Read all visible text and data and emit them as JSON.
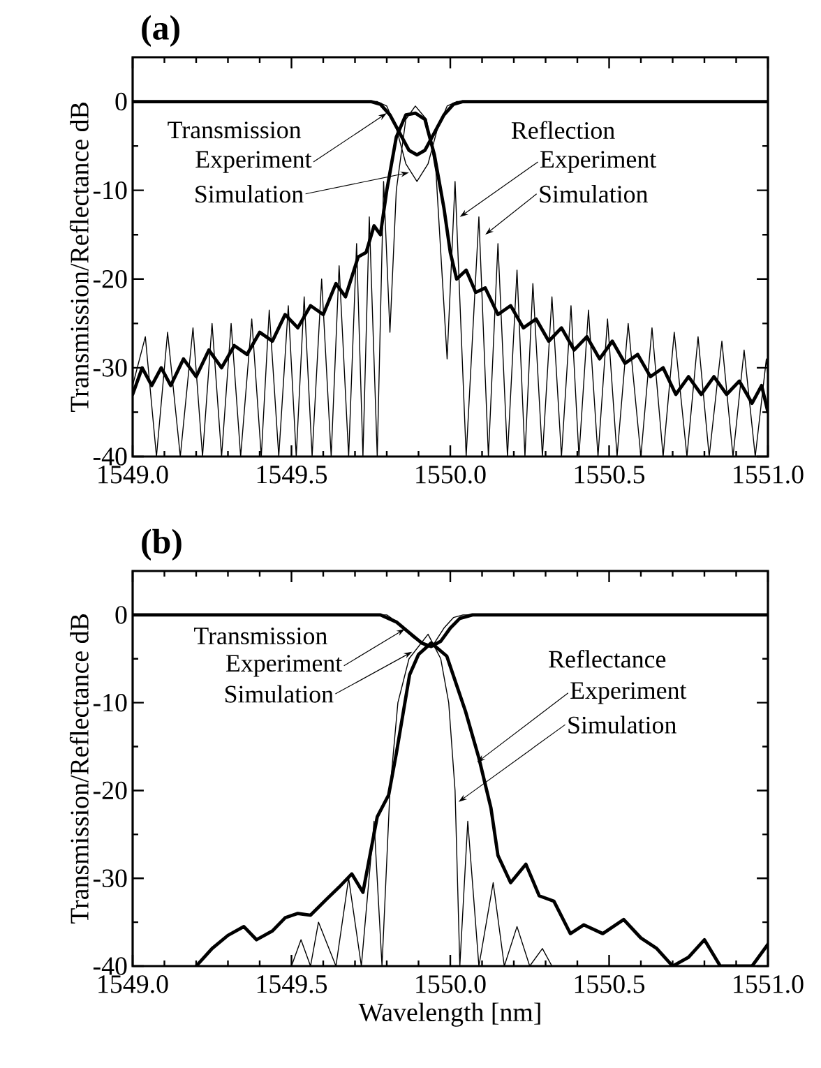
{
  "chart_data": [
    {
      "type": "line",
      "title": "(a)",
      "ylabel": "Transmission/Reflectance  dB",
      "xlim": [
        1549.0,
        1551.0
      ],
      "ylim": [
        -40,
        5
      ],
      "line_style": "solid",
      "xticks": [
        {
          "value": 1549.0,
          "label": "1549.0"
        },
        {
          "value": 1549.5,
          "label": "1549.5"
        },
        {
          "value": 1550.0,
          "label": "1550.0"
        },
        {
          "value": 1550.5,
          "label": "1550.5"
        },
        {
          "value": 1551.0,
          "label": "1551.0"
        }
      ],
      "yticks": [
        0,
        -10,
        -20,
        -30,
        -40
      ],
      "series": [
        {
          "color": "#000000",
          "x": [
            1549.0,
            1549.75,
            1549.78,
            1549.81,
            1549.84,
            1549.87,
            1549.895,
            1549.92,
            1549.95,
            1549.98,
            1550.01,
            1550.04,
            1551.0
          ],
          "values": [
            0,
            0,
            -0.3,
            -1.5,
            -3.5,
            -5.5,
            -6,
            -5.5,
            -3.5,
            -1.5,
            -0.3,
            0,
            0
          ]
        },
        {
          "color": "#000000",
          "x": [
            1549.0,
            1549.77,
            1549.8,
            1549.83,
            1549.86,
            1549.895,
            1549.93,
            1549.96,
            1549.99,
            1550.02,
            1551.0
          ],
          "values": [
            0,
            0,
            -0.5,
            -3,
            -7,
            -9,
            -7,
            -3,
            -0.5,
            0,
            0
          ]
        },
        {
          "color": "#000000",
          "x": [
            1549.0,
            1549.03,
            1549.06,
            1549.09,
            1549.12,
            1549.16,
            1549.2,
            1549.24,
            1549.28,
            1549.32,
            1549.36,
            1549.4,
            1549.44,
            1549.48,
            1549.52,
            1549.56,
            1549.6,
            1549.64,
            1549.67,
            1549.71,
            1549.735,
            1549.76,
            1549.78,
            1549.8,
            1549.83,
            1549.86,
            1549.89,
            1549.92,
            1549.95,
            1549.98,
            1550.0,
            1550.02,
            1550.05,
            1550.08,
            1550.11,
            1550.15,
            1550.19,
            1550.23,
            1550.27,
            1550.31,
            1550.35,
            1550.39,
            1550.43,
            1550.47,
            1550.51,
            1550.55,
            1550.59,
            1550.63,
            1550.67,
            1550.71,
            1550.75,
            1550.79,
            1550.83,
            1550.87,
            1550.91,
            1550.95,
            1550.98,
            1551.0
          ],
          "values": [
            -33,
            -30,
            -32,
            -30,
            -32,
            -29,
            -31,
            -28,
            -30,
            -27.5,
            -28.5,
            -26,
            -27,
            -24,
            -25.5,
            -23,
            -24,
            -20.5,
            -22,
            -17.5,
            -17,
            -14,
            -15,
            -10,
            -4,
            -1.5,
            -1.3,
            -2,
            -6,
            -12,
            -17,
            -20,
            -19,
            -21.5,
            -21,
            -24,
            -23,
            -25.5,
            -24.5,
            -27,
            -25.5,
            -28,
            -26.5,
            -29,
            -27,
            -29.5,
            -28.5,
            -31,
            -30,
            -33,
            -31,
            -33,
            -31,
            -33,
            -31.5,
            -34,
            -32,
            -35
          ]
        },
        {
          "color": "#000000",
          "x": [
            1549.0,
            1549.04,
            1549.075,
            1549.11,
            1549.15,
            1549.19,
            1549.22,
            1549.25,
            1549.28,
            1549.31,
            1549.34,
            1549.375,
            1549.405,
            1549.43,
            1549.46,
            1549.49,
            1549.515,
            1549.54,
            1549.565,
            1549.595,
            1549.625,
            1549.65,
            1549.68,
            1549.705,
            1549.725,
            1549.745,
            1549.77,
            1549.79,
            1549.81,
            1549.83,
            1549.86,
            1549.89,
            1549.925,
            1549.955,
            1549.99,
            1550.015,
            1550.05,
            1550.09,
            1550.12,
            1550.15,
            1550.18,
            1550.21,
            1550.235,
            1550.26,
            1550.29,
            1550.32,
            1550.35,
            1550.38,
            1550.405,
            1550.435,
            1550.465,
            1550.495,
            1550.525,
            1550.56,
            1550.6,
            1550.635,
            1550.67,
            1550.705,
            1550.745,
            1550.78,
            1550.815,
            1550.855,
            1550.89,
            1550.925,
            1550.96,
            1550.995,
            1551.0
          ],
          "values": [
            -32,
            -26.5,
            -40,
            -26,
            -40,
            -25.5,
            -40,
            -25,
            -40,
            -25,
            -40,
            -24.5,
            -40,
            -23.5,
            -40,
            -23,
            -40,
            -22,
            -40,
            -20,
            -40,
            -18.5,
            -40,
            -16,
            -40,
            -13,
            -40,
            -9,
            -26,
            -10,
            -2,
            -0.5,
            -2,
            -8,
            -29,
            -9,
            -40,
            -13,
            -40,
            -16,
            -40,
            -19,
            -40,
            -20.5,
            -40,
            -22,
            -40,
            -23,
            -40,
            -23.5,
            -40,
            -24.5,
            -40,
            -25,
            -40,
            -25.5,
            -40,
            -26,
            -40,
            -26.5,
            -40,
            -27,
            -40,
            -28,
            -40,
            -29,
            -31
          ]
        }
      ],
      "annotations": [
        "Transmission",
        {
          "text": "Experiment",
          "x": 1549.8,
          "y": -1.3
        },
        {
          "text": "Simulation",
          "x": 1549.87,
          "y": -8
        },
        "Reflection",
        {
          "text": "Experiment",
          "x": 1550.03,
          "y": -13
        },
        {
          "text": "Simulation",
          "x": 1550.11,
          "y": -15
        }
      ]
    },
    {
      "type": "line",
      "title": "(b)",
      "xlabel": "Wavelength  [nm]",
      "ylabel": "Transmission/Reflectance  dB",
      "xlim": [
        1549.0,
        1551.0
      ],
      "ylim": [
        -40,
        5
      ],
      "line_style": "solid",
      "xticks": [
        {
          "value": 1549.0,
          "label": "1549.0"
        },
        {
          "value": 1549.5,
          "label": "1549.5"
        },
        {
          "value": 1550.0,
          "label": "1550.0"
        },
        {
          "value": 1550.5,
          "label": "1550.5"
        },
        {
          "value": 1551.0,
          "label": "1551.0"
        }
      ],
      "yticks": [
        0,
        -10,
        -20,
        -30,
        -40
      ],
      "series": [
        {
          "color": "#000000",
          "x": [
            1549.0,
            1549.78,
            1549.83,
            1549.87,
            1549.91,
            1549.94,
            1549.97,
            1550.0,
            1550.03,
            1550.07,
            1551.0
          ],
          "values": [
            0,
            0,
            -0.8,
            -2,
            -3.2,
            -3.6,
            -3,
            -1.5,
            -0.4,
            0,
            0
          ]
        },
        {
          "color": "#000000",
          "x": [
            1549.0,
            1549.8,
            1549.84,
            1549.88,
            1549.92,
            1549.95,
            1549.98,
            1550.01,
            1550.04,
            1551.0
          ],
          "values": [
            0,
            0,
            -1,
            -2.5,
            -3.5,
            -3.2,
            -1.5,
            -0.3,
            0,
            0
          ]
        },
        {
          "color": "#000000",
          "x": [
            1549.2,
            1549.25,
            1549.3,
            1549.35,
            1549.39,
            1549.44,
            1549.48,
            1549.52,
            1549.56,
            1549.61,
            1549.65,
            1549.69,
            1549.725,
            1549.77,
            1549.806,
            1549.83,
            1549.872,
            1549.9,
            1549.94,
            1549.989,
            1550.048,
            1550.09,
            1550.128,
            1550.15,
            1550.19,
            1550.238,
            1550.28,
            1550.326,
            1550.378,
            1550.42,
            1550.48,
            1550.546,
            1550.6,
            1550.65,
            1550.7,
            1550.75,
            1550.8,
            1550.85,
            1550.9,
            1550.95,
            1551.0
          ],
          "values": [
            -40,
            -38,
            -36.5,
            -35.5,
            -37,
            -36,
            -34.5,
            -34,
            -34.2,
            -32.4,
            -31,
            -29.5,
            -31.6,
            -23,
            -20.5,
            -15.8,
            -6.8,
            -4.5,
            -3.2,
            -4.7,
            -11,
            -16.3,
            -22,
            -27.4,
            -30.5,
            -28.4,
            -32,
            -32.6,
            -36.3,
            -35.3,
            -36.3,
            -34.7,
            -36.8,
            -38,
            -40,
            -39,
            -37,
            -40,
            -40,
            -40,
            -37.5
          ]
        },
        {
          "color": "#000000",
          "x": [
            1549.0,
            1549.5,
            1549.53,
            1549.56,
            1549.585,
            1549.64,
            1549.68,
            1549.72,
            1549.76,
            1549.785,
            1549.81,
            1549.835,
            1549.87,
            1549.93,
            1549.97,
            1549.995,
            1550.015,
            1550.03,
            1550.055,
            1550.09,
            1550.135,
            1550.17,
            1550.21,
            1550.25,
            1550.29,
            1550.32,
            1551.0
          ],
          "values": [
            -40,
            -40,
            -37,
            -40,
            -35,
            -40,
            -30,
            -40,
            -23.5,
            -40,
            -20,
            -10,
            -5,
            -2.2,
            -5,
            -10,
            -20,
            -40,
            -23.5,
            -40,
            -30.5,
            -40,
            -35.5,
            -40,
            -38,
            -40,
            -40
          ]
        }
      ],
      "annotations": [
        "Transmission",
        {
          "text": "Experiment",
          "x": 1549.857,
          "y": -1.6
        },
        {
          "text": "Simulation",
          "x": 1549.88,
          "y": -4.2
        },
        "Reflectance",
        {
          "text": "Experiment",
          "x": 1550.084,
          "y": -16.8
        },
        {
          "text": "Simulation",
          "x": 1550.026,
          "y": -21.3
        }
      ]
    }
  ]
}
